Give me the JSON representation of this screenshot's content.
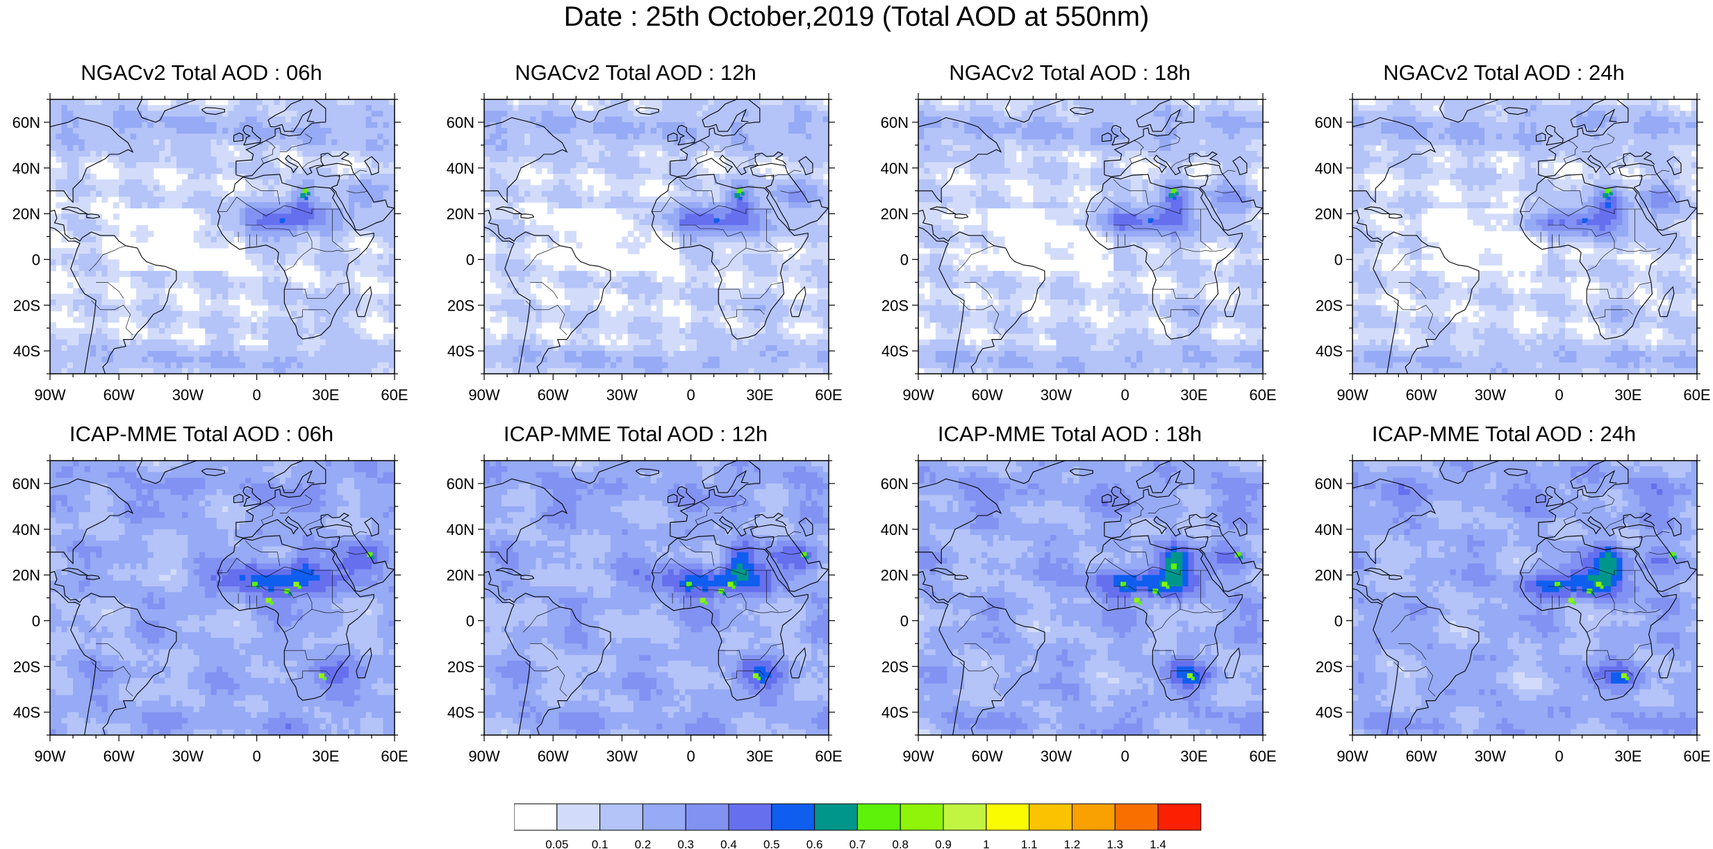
{
  "title": "Date : 25th October,2019 (Total AOD at 550nm)",
  "map": {
    "lon_range": [
      -90,
      60
    ],
    "lat_range": [
      -50,
      70
    ],
    "lon_ticks": [
      "90W",
      "60W",
      "30W",
      "0",
      "30E",
      "60E"
    ],
    "lat_ticks": [
      "60N",
      "40N",
      "20N",
      "0",
      "20S",
      "40S"
    ]
  },
  "panels": [
    {
      "id": "ngac-06",
      "title": "NGACv2 Total AOD : 06h",
      "model": "NGACv2",
      "hour": "06h"
    },
    {
      "id": "ngac-12",
      "title": "NGACv2 Total AOD : 12h",
      "model": "NGACv2",
      "hour": "12h"
    },
    {
      "id": "ngac-18",
      "title": "NGACv2 Total AOD : 18h",
      "model": "NGACv2",
      "hour": "18h"
    },
    {
      "id": "ngac-24",
      "title": "NGACv2 Total AOD : 24h",
      "model": "NGACv2",
      "hour": "24h"
    },
    {
      "id": "icap-06",
      "title": "ICAP-MME Total AOD : 06h",
      "model": "ICAP-MME",
      "hour": "06h"
    },
    {
      "id": "icap-12",
      "title": "ICAP-MME Total AOD : 12h",
      "model": "ICAP-MME",
      "hour": "12h"
    },
    {
      "id": "icap-18",
      "title": "ICAP-MME Total AOD : 18h",
      "model": "ICAP-MME",
      "hour": "18h"
    },
    {
      "id": "icap-24",
      "title": "ICAP-MME Total AOD : 24h",
      "model": "ICAP-MME",
      "hour": "24h"
    }
  ],
  "colorbar": {
    "labels": [
      "0.05",
      "0.1",
      "0.2",
      "0.3",
      "0.4",
      "0.5",
      "0.6",
      "0.7",
      "0.8",
      "0.9",
      "1",
      "1.1",
      "1.2",
      "1.3",
      "1.4"
    ],
    "colors": [
      "#ffffff",
      "#d2dcfa",
      "#b4c3f8",
      "#96aaf5",
      "#8292f2",
      "#6670ee",
      "#0f5ef0",
      "#00968c",
      "#5ef20a",
      "#8ef50a",
      "#c2f542",
      "#fafa00",
      "#fac200",
      "#faa000",
      "#fa7000",
      "#fa2000"
    ]
  }
}
